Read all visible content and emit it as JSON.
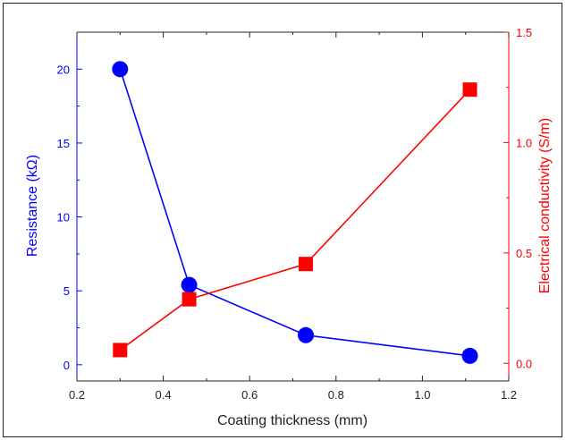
{
  "chart_data": {
    "type": "line",
    "xlabel": "Coating thickness (mm)",
    "ylabel_left": "Resistance (kΩ)",
    "ylabel_right": "Electrical conductivity (S/m)",
    "xlim": [
      0.2,
      1.2
    ],
    "ylim_left": [
      -1.1,
      22.5
    ],
    "ylim_right": [
      -0.08,
      1.5
    ],
    "x_ticks": [
      0.2,
      0.4,
      0.6,
      0.8,
      1.0,
      1.2
    ],
    "x_tick_labels": [
      "0.2",
      "0.4",
      "0.6",
      "0.8",
      "1.0",
      "1.2"
    ],
    "y_left_ticks": [
      0,
      5,
      10,
      15,
      20
    ],
    "y_left_tick_labels": [
      "0",
      "5",
      "10",
      "15",
      "20"
    ],
    "y_right_ticks": [
      0.0,
      0.5,
      1.0,
      1.5
    ],
    "y_right_tick_labels": [
      "0.0",
      "0.5",
      "1.0",
      "1.5"
    ],
    "grid": false,
    "series": [
      {
        "axis": "left",
        "marker": "circle",
        "color": "#0000ff",
        "x": [
          0.3,
          0.46,
          0.73,
          1.11
        ],
        "values": [
          20.0,
          5.4,
          2.0,
          0.6
        ]
      },
      {
        "axis": "right",
        "marker": "square",
        "color": "#ff0000",
        "x": [
          0.3,
          0.46,
          0.73,
          1.11
        ],
        "values": [
          0.06,
          0.29,
          0.45,
          1.24
        ]
      }
    ]
  }
}
